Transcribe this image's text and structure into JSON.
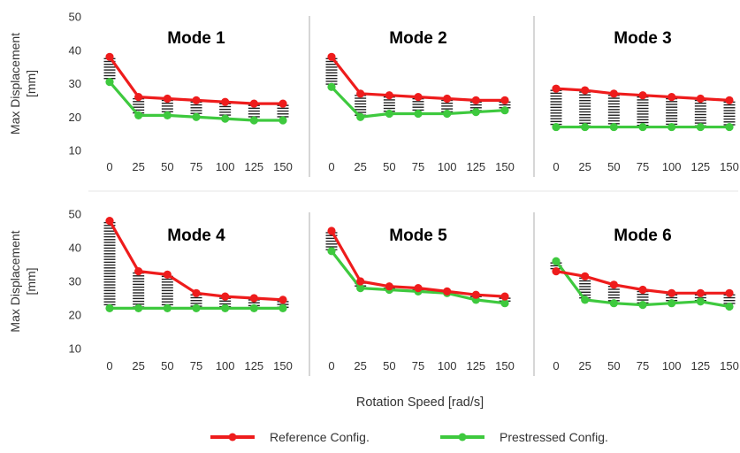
{
  "chart_data": {
    "type": "line",
    "layout": "2x3 small multiples",
    "ylabel": "Max Displacement [mm]",
    "xlabel": "Rotation Speed [rad/s]",
    "ylim": [
      10,
      50
    ],
    "yticks": [
      10,
      20,
      30,
      40,
      50
    ],
    "x": [
      0,
      25,
      50,
      75,
      100,
      125,
      150
    ],
    "grid": false,
    "legend_position": "bottom-center",
    "series_styles": [
      {
        "name": "Reference Config.",
        "color": "#ee1c1c"
      },
      {
        "name": "Prestressed Config.",
        "color": "#3ec93e"
      }
    ],
    "panels": [
      {
        "title": "Mode 1",
        "series": [
          {
            "name": "Reference Config.",
            "values": [
              38,
              26,
              25.5,
              25,
              24.5,
              24,
              24
            ]
          },
          {
            "name": "Prestressed Config.",
            "values": [
              30.5,
              20.5,
              20.5,
              20,
              19.5,
              19,
              19
            ]
          }
        ]
      },
      {
        "title": "Mode 2",
        "series": [
          {
            "name": "Reference Config.",
            "values": [
              38,
              27,
              26.5,
              26,
              25.5,
              25,
              25
            ]
          },
          {
            "name": "Prestressed Config.",
            "values": [
              29,
              20,
              21,
              21,
              21,
              21.5,
              22
            ]
          }
        ]
      },
      {
        "title": "Mode 3",
        "series": [
          {
            "name": "Reference Config.",
            "values": [
              28.5,
              28,
              27,
              26.5,
              26,
              25.5,
              25
            ]
          },
          {
            "name": "Prestressed Config.",
            "values": [
              17,
              17,
              17,
              17,
              17,
              17,
              17
            ]
          }
        ]
      },
      {
        "title": "Mode 4",
        "series": [
          {
            "name": "Reference Config.",
            "values": [
              48,
              33,
              32,
              26.5,
              25.5,
              25,
              24.5
            ]
          },
          {
            "name": "Prestressed Config.",
            "values": [
              22,
              22,
              22,
              22,
              22,
              22,
              22
            ]
          }
        ]
      },
      {
        "title": "Mode 5",
        "series": [
          {
            "name": "Reference Config.",
            "values": [
              45,
              30,
              28.5,
              28,
              27,
              26,
              25.5
            ]
          },
          {
            "name": "Prestressed Config.",
            "values": [
              39,
              28,
              27.5,
              27,
              26.5,
              24.5,
              23.5
            ]
          }
        ]
      },
      {
        "title": "Mode 6",
        "series": [
          {
            "name": "Reference Config.",
            "values": [
              33,
              31.5,
              29,
              27.5,
              26.5,
              26.5,
              26.5
            ]
          },
          {
            "name": "Prestressed Config.",
            "values": [
              36,
              24.5,
              23.5,
              23,
              23.5,
              24,
              22.5
            ]
          }
        ]
      }
    ]
  }
}
